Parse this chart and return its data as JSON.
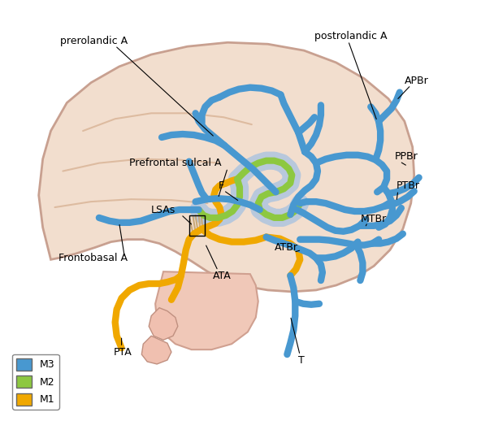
{
  "bg_color": "#f2dece",
  "brain_stroke_color": "#c8a090",
  "M1_color": "#f0a800",
  "M2_color": "#8dc840",
  "M3_color": "#4898d0",
  "M3_dark": "#2878b8",
  "shadow_color": "#b8c8dc",
  "ICA_color": "#f5c870",
  "legend_items": [
    "M3",
    "M2",
    "M1"
  ],
  "legend_colors": [
    "#4898d0",
    "#8dc840",
    "#f0a800"
  ],
  "figsize": [
    5.92,
    5.18
  ],
  "dpi": 100
}
